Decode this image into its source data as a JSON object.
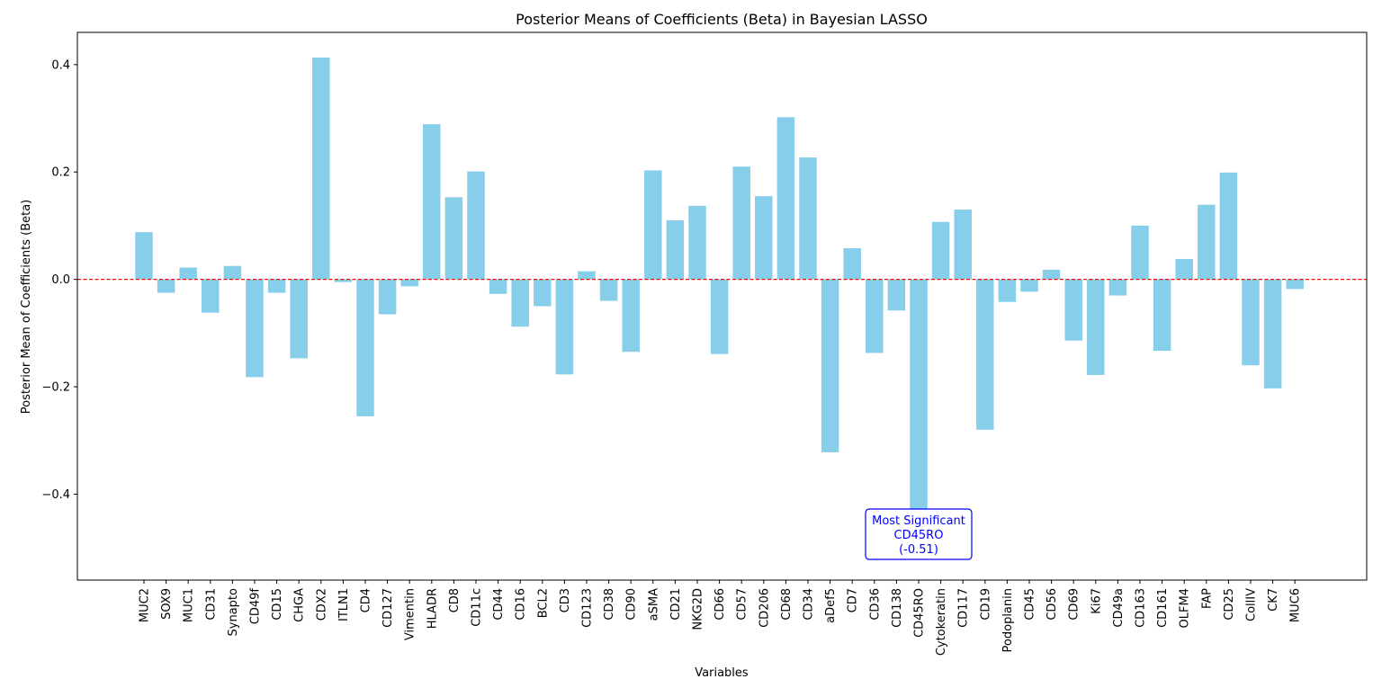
{
  "chart_data": {
    "type": "bar",
    "title": "Posterior Means of Coefficients (Beta) in Bayesian LASSO",
    "xlabel": "Variables",
    "ylabel": "Posterior Mean of Coefficients (Beta)",
    "ylim": [
      -0.56,
      0.46
    ],
    "yticks": [
      -0.4,
      -0.2,
      0.0,
      0.2,
      0.4
    ],
    "ytick_labels": [
      "−0.4",
      "−0.2",
      "0.0",
      "0.2",
      "0.4"
    ],
    "grid": false,
    "bar_color": "#87ceeb",
    "reference_line": {
      "y": 0.0,
      "color": "#ff0000",
      "style": "dashed"
    },
    "categories": [
      "MUC2",
      "SOX9",
      "MUC1",
      "CD31",
      "Synapto",
      "CD49f",
      "CD15",
      "CHGA",
      "CDX2",
      "ITLN1",
      "CD4",
      "CD127",
      "Vimentin",
      "HLADR",
      "CD8",
      "CD11c",
      "CD44",
      "CD16",
      "BCL2",
      "CD3",
      "CD123",
      "CD38",
      "CD90",
      "aSMA",
      "CD21",
      "NKG2D",
      "CD66",
      "CD57",
      "CD206",
      "CD68",
      "CD34",
      "aDef5",
      "CD7",
      "CD36",
      "CD138",
      "CD45RO",
      "Cytokeratin",
      "CD117",
      "CD19",
      "Podoplanin",
      "CD45",
      "CD56",
      "CD69",
      "Ki67",
      "CD49a",
      "CD163",
      "CD161",
      "OLFM4",
      "FAP",
      "CD25",
      "CollIV",
      "CK7",
      "MUC6"
    ],
    "values": [
      0.088,
      -0.025,
      0.022,
      -0.062,
      0.025,
      -0.182,
      -0.025,
      -0.147,
      0.413,
      -0.005,
      -0.255,
      -0.065,
      -0.013,
      0.289,
      0.153,
      0.201,
      -0.027,
      -0.088,
      -0.05,
      -0.177,
      0.015,
      -0.04,
      -0.135,
      0.203,
      0.11,
      0.137,
      -0.139,
      0.21,
      0.155,
      0.302,
      0.227,
      -0.322,
      0.058,
      -0.137,
      -0.058,
      -0.51,
      0.107,
      0.13,
      -0.28,
      -0.042,
      -0.023,
      0.018,
      -0.114,
      -0.178,
      -0.03,
      0.1,
      -0.133,
      0.038,
      0.139,
      0.199,
      -0.16,
      -0.203,
      -0.018
    ],
    "annotation": {
      "lines": [
        "Most Significant",
        "CD45RO",
        "(-0.51)"
      ],
      "target": "CD45RO",
      "value": -0.51,
      "text_color": "#0000ff",
      "border_color": "#0000ff"
    }
  }
}
